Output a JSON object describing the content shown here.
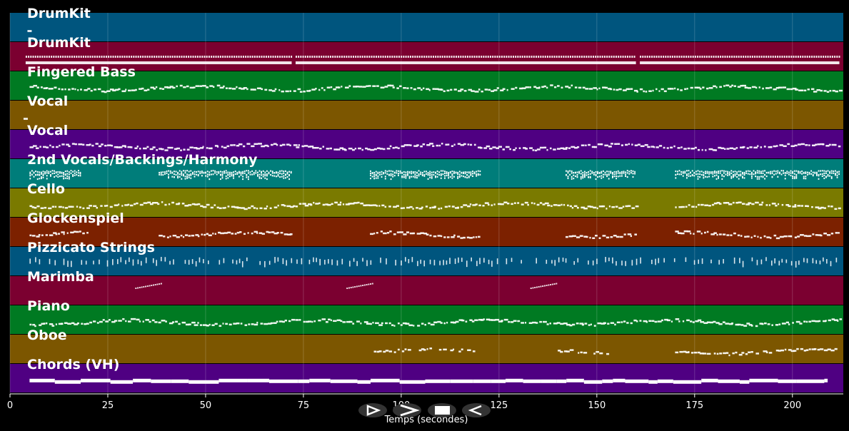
{
  "view": {
    "x_axis": {
      "label": "Temps (secondes)",
      "range": [
        0,
        213
      ],
      "ticks": [
        "0",
        "25",
        "50",
        "75",
        "100",
        "125",
        "150",
        "175",
        "200"
      ],
      "tick_values": [
        0,
        25,
        50,
        75,
        100,
        125,
        150,
        175,
        200
      ]
    },
    "grid": true
  },
  "tracks": [
    {
      "name": "DrumKit",
      "color": "#00557e",
      "pattern": "sparse-start",
      "density": 0.0,
      "segments": [
        [
          3,
          6
        ]
      ],
      "style": "dots"
    },
    {
      "name": "DrumKit",
      "color": "#7b0030",
      "pattern": "dense",
      "density": 1.0,
      "segments": [
        [
          4,
          72
        ],
        [
          73,
          160
        ],
        [
          161,
          212
        ]
      ],
      "style": "double"
    },
    {
      "name": "Fingered Bass",
      "color": "#007a22",
      "pattern": "wavy",
      "density": 0.8,
      "segments": [
        [
          5,
          212
        ]
      ],
      "style": "wavy"
    },
    {
      "name": "Vocal",
      "color": "#7c5600",
      "pattern": "single-mark",
      "density": 0.0,
      "segments": [
        [
          2,
          3
        ]
      ],
      "style": "dots"
    },
    {
      "name": "Vocal",
      "color": "#4f0082",
      "pattern": "wavy",
      "density": 0.9,
      "segments": [
        [
          5,
          212
        ]
      ],
      "style": "wavy"
    },
    {
      "name": "2nd Vocals/Backings/Harmony",
      "color": "#007d7a",
      "pattern": "blocks",
      "density": 1.0,
      "segments": [
        [
          5,
          18
        ],
        [
          38,
          72
        ],
        [
          92,
          120
        ],
        [
          142,
          160
        ],
        [
          170,
          212
        ]
      ],
      "style": "blocks"
    },
    {
      "name": "Cello",
      "color": "#7a7a00",
      "pattern": "wavy",
      "density": 0.8,
      "segments": [
        [
          5,
          160
        ],
        [
          170,
          212
        ]
      ],
      "style": "wavy"
    },
    {
      "name": "Glockenspiel",
      "color": "#7c2100",
      "pattern": "segments",
      "density": 0.8,
      "segments": [
        [
          5,
          20
        ],
        [
          38,
          72
        ],
        [
          92,
          120
        ],
        [
          142,
          160
        ],
        [
          170,
          212
        ]
      ],
      "style": "wavy"
    },
    {
      "name": "Pizzicato Strings",
      "color": "#00557e",
      "pattern": "ticks",
      "density": 0.7,
      "segments": [
        [
          5,
          212
        ]
      ],
      "style": "ticks"
    },
    {
      "name": "Marimba",
      "color": "#7b0030",
      "pattern": "short",
      "density": 0.5,
      "segments": [
        [
          32,
          39
        ],
        [
          86,
          93
        ],
        [
          133,
          140
        ]
      ],
      "style": "rising"
    },
    {
      "name": "Piano",
      "color": "#007a22",
      "pattern": "dense",
      "density": 1.0,
      "segments": [
        [
          5,
          212
        ]
      ],
      "style": "wavy"
    },
    {
      "name": "Oboe",
      "color": "#7c5600",
      "pattern": "segments",
      "density": 0.6,
      "segments": [
        [
          93,
          120
        ],
        [
          140,
          153
        ],
        [
          170,
          212
        ]
      ],
      "style": "wavy"
    },
    {
      "name": "Chords (VH)",
      "color": "#4f0082",
      "pattern": "solid",
      "density": 1.0,
      "segments": [
        [
          5,
          209
        ]
      ],
      "style": "solid"
    }
  ],
  "controls": [
    {
      "name": "rewind-button",
      "icon": "play-outline-icon"
    },
    {
      "name": "play-button",
      "icon": "play-icon"
    },
    {
      "name": "stop-button",
      "icon": "stop-icon"
    },
    {
      "name": "back-button",
      "icon": "reverse-icon"
    }
  ],
  "colors": {
    "background": "#000000",
    "note": "#ffffff",
    "grid": "#ffffff",
    "control_bg": "#333333"
  }
}
